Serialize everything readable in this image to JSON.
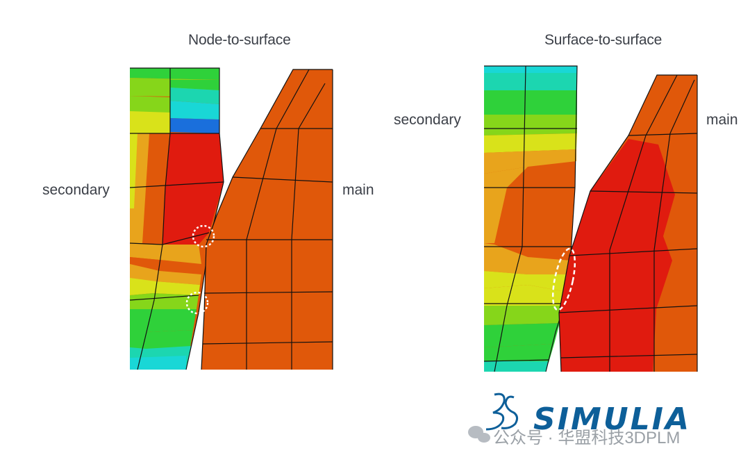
{
  "titles": {
    "left": "Node-to-surface",
    "right": "Surface-to-surface"
  },
  "labels": {
    "left_secondary": "secondary",
    "left_main": "main",
    "right_secondary": "secondary",
    "right_main": "main"
  },
  "logo": {
    "text": "SIMULIA",
    "color": "#0d5f99"
  },
  "watermark": {
    "text": "公众号 · 华盟科技3DPLM"
  },
  "colors": {
    "red": "#e01b0f",
    "orange": "#e0580a",
    "amber": "#e8a41c",
    "yellow": "#d9e21a",
    "lime": "#86d61a",
    "green": "#2fd13a",
    "teal": "#1cd6b0",
    "cyan": "#19d7d6",
    "blue": "#1a6fdc"
  }
}
